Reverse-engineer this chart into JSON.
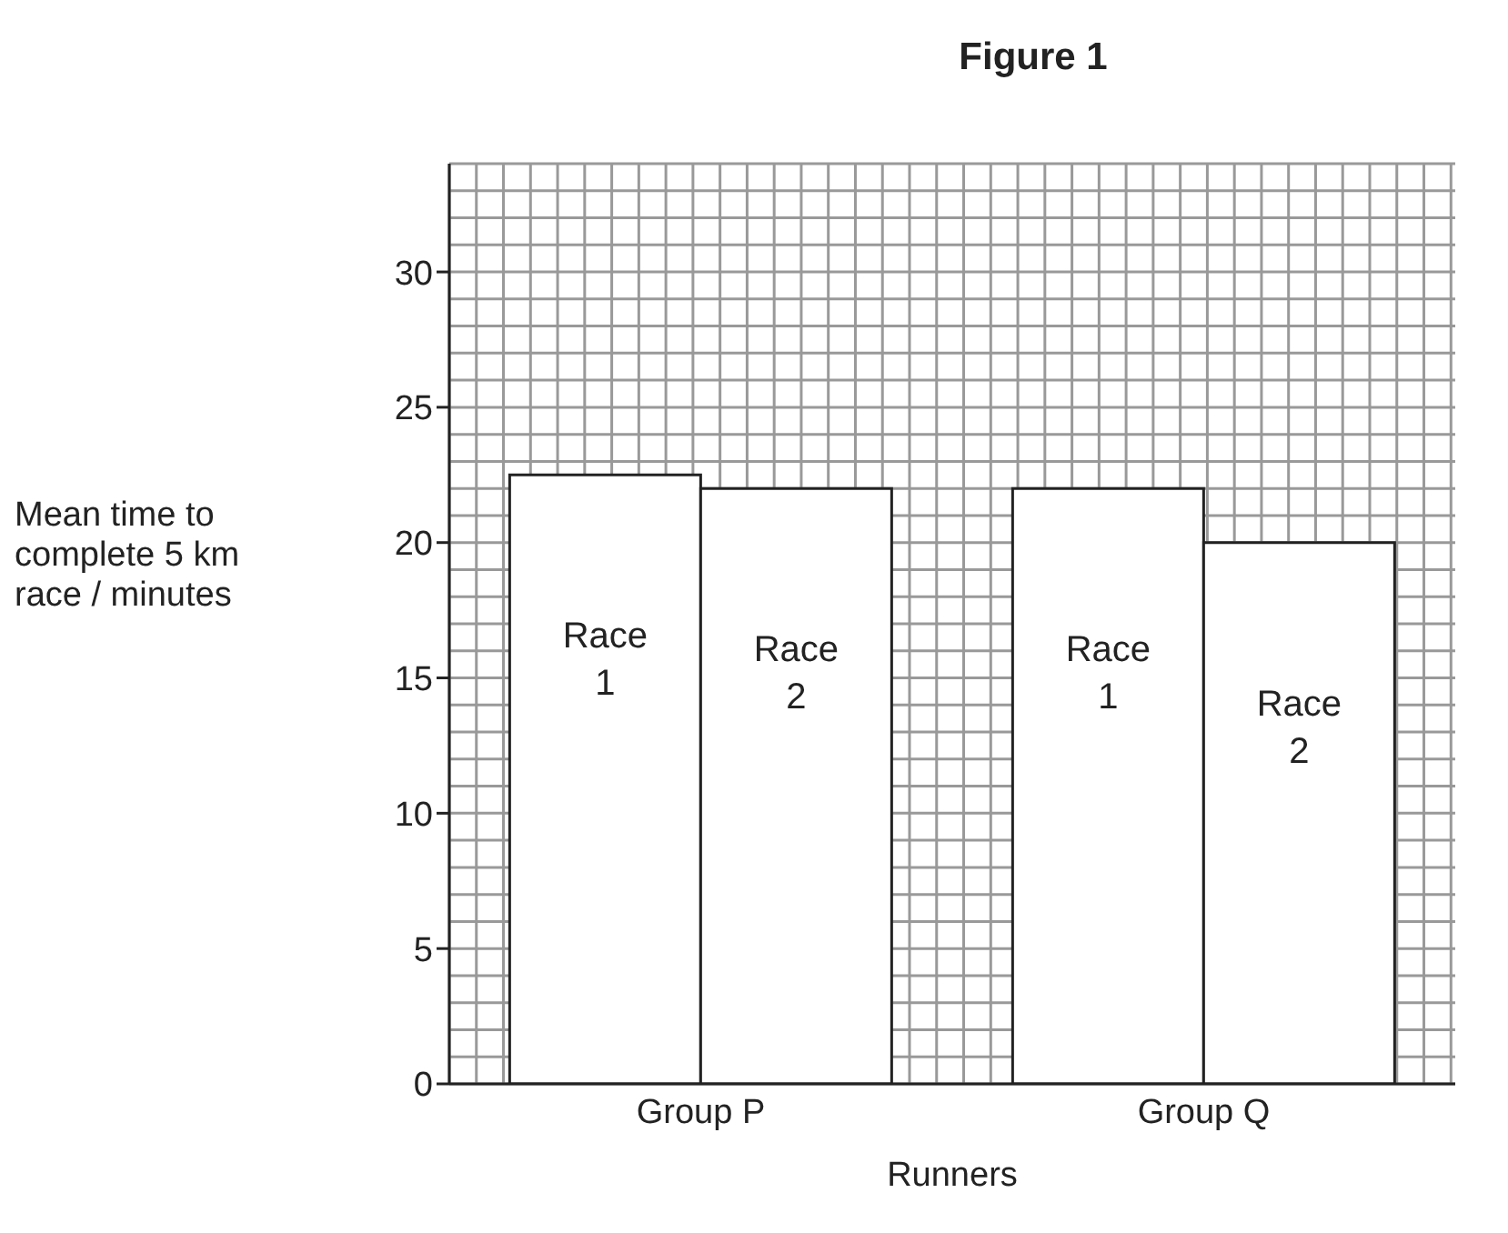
{
  "chart_data": {
    "type": "bar",
    "title": "Figure 1",
    "xlabel": "Runners",
    "ylabel": "Mean time to complete 5 km race / minutes",
    "categories": [
      "Group P",
      "Group Q"
    ],
    "series": [
      {
        "name": "Race 1",
        "color": "#ffffff",
        "values": [
          22.5,
          22
        ]
      },
      {
        "name": "Race 2",
        "color": "#ffffff",
        "values": [
          22,
          20
        ]
      }
    ],
    "ylim": [
      0,
      34
    ],
    "yticks": [
      0,
      5,
      10,
      15,
      20,
      25,
      30
    ],
    "grid": true
  }
}
